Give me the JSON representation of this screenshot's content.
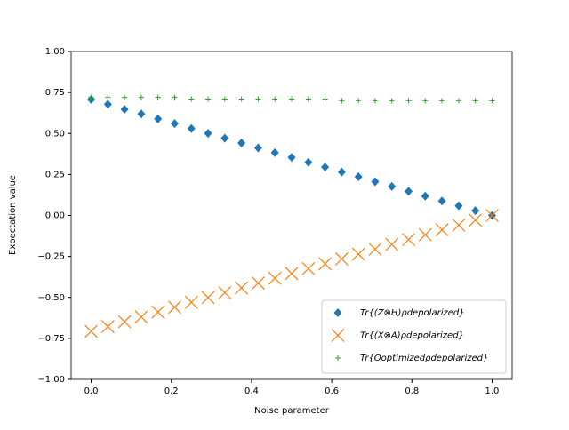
{
  "chart_data": {
    "type": "scatter",
    "xlabel": "Noise parameter",
    "ylabel": "Expectation value",
    "x": [
      0,
      0.0417,
      0.0833,
      0.125,
      0.1667,
      0.2083,
      0.25,
      0.2917,
      0.3333,
      0.375,
      0.4167,
      0.4583,
      0.5,
      0.5417,
      0.5833,
      0.625,
      0.6667,
      0.7083,
      0.75,
      0.7917,
      0.8333,
      0.875,
      0.9167,
      0.9583,
      1
    ],
    "series": [
      {
        "name": "Tr{(Z⊗H)ρdepolarized}",
        "color": "#1f77b4",
        "marker": "D",
        "values": [
          0.707,
          0.678,
          0.648,
          0.619,
          0.589,
          0.56,
          0.53,
          0.501,
          0.471,
          0.442,
          0.412,
          0.383,
          0.354,
          0.324,
          0.295,
          0.265,
          0.236,
          0.206,
          0.177,
          0.147,
          0.118,
          0.088,
          0.059,
          0.029,
          0
        ]
      },
      {
        "name": "Tr{(X⊗A)ρdepolarized}",
        "color": "#ff7f0e",
        "marker": "x",
        "values": [
          -0.707,
          -0.678,
          -0.648,
          -0.619,
          -0.589,
          -0.56,
          -0.53,
          -0.501,
          -0.471,
          -0.442,
          -0.412,
          -0.383,
          -0.354,
          -0.324,
          -0.295,
          -0.265,
          -0.236,
          -0.206,
          -0.177,
          -0.147,
          -0.118,
          -0.088,
          -0.059,
          -0.029,
          0
        ]
      },
      {
        "name": "Tr{Ooptimizedρdepolarized}",
        "color": "#2ca02c",
        "marker": "+",
        "values": [
          0.72,
          0.72,
          0.72,
          0.72,
          0.72,
          0.72,
          0.71,
          0.71,
          0.71,
          0.71,
          0.71,
          0.71,
          0.71,
          0.71,
          0.71,
          0.7,
          0.7,
          0.7,
          0.7,
          0.7,
          0.7,
          0.7,
          0.7,
          0.7,
          0.7
        ]
      }
    ],
    "xlim": [
      -0.05,
      1.05
    ],
    "ylim": [
      -1,
      1
    ],
    "xticks": [
      {
        "value": 0,
        "label": "0.0"
      },
      {
        "value": 0.2,
        "label": "0.2"
      },
      {
        "value": 0.4,
        "label": "0.4"
      },
      {
        "value": 0.6,
        "label": "0.6"
      },
      {
        "value": 0.8,
        "label": "0.8"
      },
      {
        "value": 1,
        "label": "1.0"
      }
    ],
    "yticks": [
      {
        "value": -1,
        "label": "−1.00"
      },
      {
        "value": -0.75,
        "label": "−0.75"
      },
      {
        "value": -0.5,
        "label": "−0.50"
      },
      {
        "value": -0.25,
        "label": "−0.25"
      },
      {
        "value": 0,
        "label": "0.00"
      },
      {
        "value": 0.25,
        "label": "0.25"
      },
      {
        "value": 0.5,
        "label": "0.50"
      },
      {
        "value": 0.75,
        "label": "0.75"
      },
      {
        "value": 1,
        "label": "1.00"
      }
    ],
    "legend": "lower right",
    "grid": false
  }
}
